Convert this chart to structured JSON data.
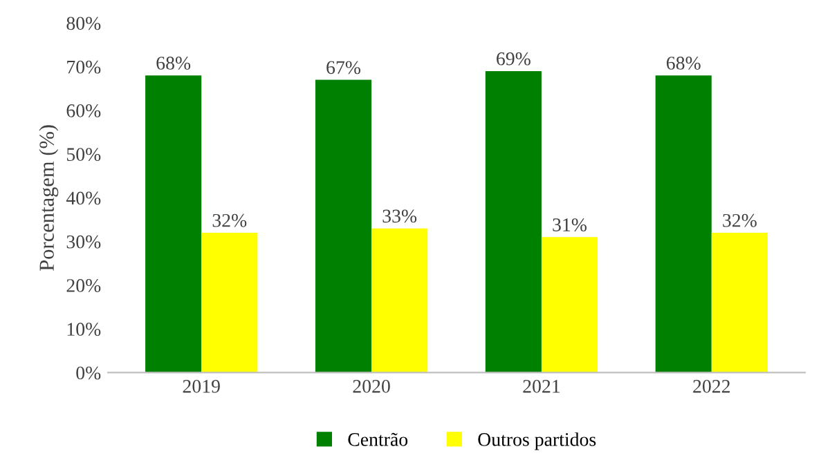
{
  "chart_data": {
    "type": "bar",
    "ylabel": "Porcentagem (%)",
    "categories": [
      "2019",
      "2020",
      "2021",
      "2022"
    ],
    "series": [
      {
        "name": "Centrão",
        "color": "#008000",
        "values": [
          68,
          67,
          69,
          68
        ],
        "value_labels": [
          "68%",
          "67%",
          "69%",
          "68%"
        ]
      },
      {
        "name": "Outros partidos",
        "color": "#ffff00",
        "values": [
          32,
          33,
          31,
          32
        ],
        "value_labels": [
          "32%",
          "33%",
          "31%",
          "32%"
        ]
      }
    ],
    "ylim": [
      0,
      80
    ],
    "yticks": [
      {
        "value": 0,
        "label": "0%"
      },
      {
        "value": 10,
        "label": "10%"
      },
      {
        "value": 20,
        "label": "20%"
      },
      {
        "value": 30,
        "label": "30%"
      },
      {
        "value": 40,
        "label": "40%"
      },
      {
        "value": 50,
        "label": "50%"
      },
      {
        "value": 60,
        "label": "60%"
      },
      {
        "value": 70,
        "label": "70%"
      },
      {
        "value": 80,
        "label": "80%"
      }
    ],
    "grid": false,
    "legend": "bottom"
  }
}
